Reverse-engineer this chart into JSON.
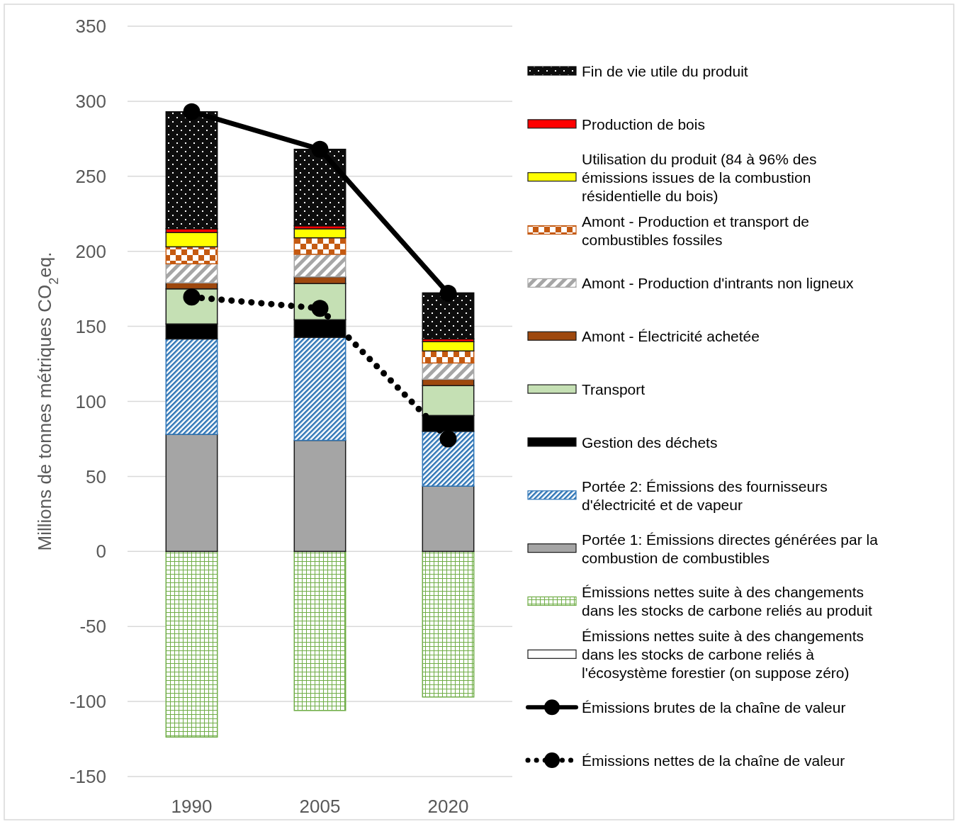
{
  "chart_data": {
    "type": "bar",
    "stacked": true,
    "ylabel": "Millions de tonnes métriques CO$_{2}$eq.",
    "categories": [
      "1990",
      "2005",
      "2020"
    ],
    "ylim": [
      -150,
      350
    ],
    "yticks": [
      -150,
      -100,
      -50,
      0,
      50,
      100,
      150,
      200,
      250,
      300,
      350
    ],
    "grid": "y",
    "legend": "right",
    "series": [
      {
        "name": "Émissions nettes suite à des changements dans les stocks de carbone reliés à l'écosystème forestier (on suppose zéro)",
        "color": "#ffffff",
        "values": [
          0,
          0,
          0
        ]
      },
      {
        "name": "Émissions nettes suite à des changements dans les stocks de carbone reliés au produit",
        "color": "#70ad47",
        "values": [
          -123.7,
          -106,
          -97
        ]
      },
      {
        "name": "Portée 1: Émissions directes générées par la combustion de combustibles",
        "color": "#a5a5a5",
        "values": [
          78,
          74,
          43.5
        ]
      },
      {
        "name": "Portée 2: Émissions des fournisseurs d'électricité et de vapeur",
        "color": "#2e75b6",
        "values": [
          63.6,
          68.6,
          36.5
        ]
      },
      {
        "name": "Gestion des déchets",
        "color": "#000000",
        "values": [
          10,
          11.8,
          10.6
        ]
      },
      {
        "name": "Transport",
        "color": "#c5e0b4",
        "values": [
          23.4,
          24.1,
          19.9
        ]
      },
      {
        "name": "Amont - Électricité achetée",
        "color": "#9e480e",
        "values": [
          4,
          4.5,
          4.2
        ]
      },
      {
        "name": "Amont - Production d'intrants non ligneux",
        "color": "#a6a6a6",
        "values": [
          12.7,
          15,
          10.9
        ]
      },
      {
        "name": "Amont - Production et transport de combustibles fossiles",
        "color": "#c55a11",
        "values": [
          11.3,
          11,
          8
        ]
      },
      {
        "name": "Utilisation du produit (84 à 96% des émissions issues de la combustion résidentielle du bois)",
        "color": "#ffff00",
        "values": [
          9.5,
          6,
          6.2
        ]
      },
      {
        "name": "Production de bois",
        "color": "#ff0000",
        "values": [
          2.5,
          2,
          1.8
        ]
      },
      {
        "name": "Fin de vie utile du produit",
        "color": "#0d0d0d",
        "values": [
          78,
          51,
          30.7
        ]
      },
      {
        "name": "Émissions brutes de la chaîne de valeur",
        "type": "line",
        "color": "#000000",
        "line_style": "solid",
        "marker": "circle",
        "values": [
          293,
          268,
          172
        ]
      },
      {
        "name": "Émissions nettes de la chaîne de valeur",
        "type": "line",
        "color": "#000000",
        "line_style": "dotted",
        "marker": "circle",
        "values": [
          169.5,
          162,
          75
        ]
      }
    ]
  }
}
